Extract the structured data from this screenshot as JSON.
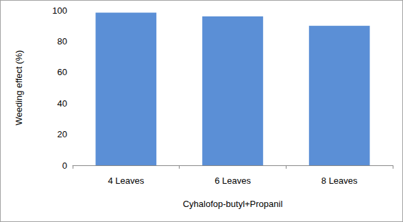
{
  "chart_data": {
    "type": "bar",
    "x_label": "Cyhalofop-butyl+Propanil",
    "y_label": "Weeding effect (%)",
    "categories": [
      "4 Leaves",
      "6 Leaves",
      "8 Leaves"
    ],
    "values": [
      98.5,
      96,
      90
    ],
    "color": "#5b8fd6",
    "ylim": [
      0,
      100
    ],
    "yticks": [
      0,
      20,
      40,
      60,
      80,
      100
    ],
    "grid": false
  }
}
